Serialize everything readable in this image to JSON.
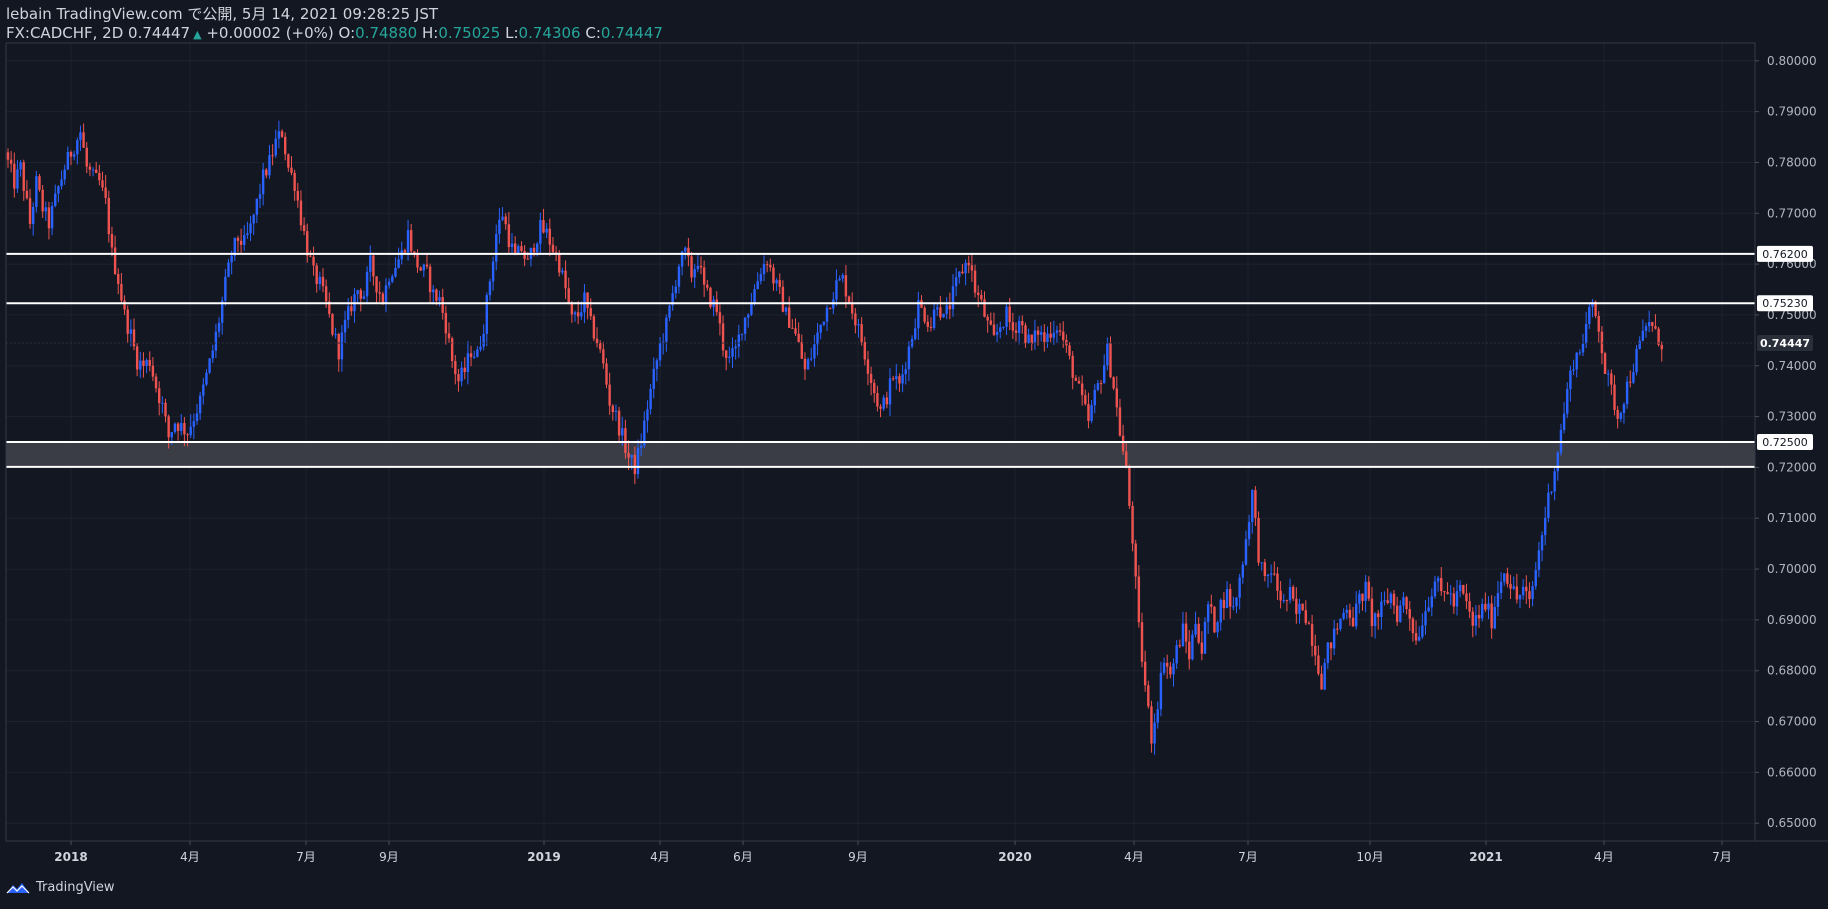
{
  "header": {
    "publish_line": "lebain TradingView.com で公開, 5月 14, 2021 09:28:25 JST",
    "symbol": "FX:CADCHF, 2D",
    "last": "0.74447",
    "change_arrow": "▲",
    "change": "+0.00002 (+0%)",
    "o_label": "O:",
    "o_value": "0.74880",
    "h_label": "H:",
    "h_value": "0.75025",
    "l_label": "L:",
    "l_value": "0.74306",
    "c_label": "C:",
    "c_value": "0.74447"
  },
  "footer": {
    "brand": "TradingView",
    "logo_icon": "tradingview-logo-icon"
  },
  "colors": {
    "background": "#131722",
    "up": "#2962ff",
    "down": "#ef5350",
    "levels": "#ffffff",
    "zone": "#3a3d46",
    "grid": "#1e222d",
    "teal": "#26a69a"
  },
  "chart_data": {
    "type": "candlestick",
    "symbol": "FX:CADCHF",
    "interval": "2D",
    "ylim": [
      0.6465,
      0.8035
    ],
    "y_ticks": [
      "0.80000",
      "0.79000",
      "0.78000",
      "0.77000",
      "0.76000",
      "0.75000",
      "0.74000",
      "0.73000",
      "0.72000",
      "0.71000",
      "0.70000",
      "0.69000",
      "0.68000",
      "0.67000",
      "0.66000",
      "0.65000"
    ],
    "x_ticks": [
      "2018",
      "4月",
      "7月",
      "9月",
      "2019",
      "4月",
      "6月",
      "9月",
      "2020",
      "4月",
      "7月",
      "10月",
      "2021",
      "4月",
      "7月"
    ],
    "horizontal_levels": [
      {
        "value": 0.762,
        "label": "0.76200"
      },
      {
        "value": 0.7523,
        "label": "0.75230"
      },
      {
        "value": 0.725,
        "label": "0.72500"
      },
      {
        "value": 0.7201,
        "label": ""
      }
    ],
    "zone": {
      "from": 0.7201,
      "to": 0.725
    },
    "last_price": {
      "value": 0.74447,
      "label": "0.74447"
    },
    "path": [
      [
        0,
        0.782
      ],
      [
        3,
        0.776
      ],
      [
        5,
        0.779
      ],
      [
        8,
        0.768
      ],
      [
        10,
        0.776
      ],
      [
        12,
        0.771
      ],
      [
        14,
        0.768
      ],
      [
        17,
        0.775
      ],
      [
        19,
        0.779
      ],
      [
        21,
        0.782
      ],
      [
        24,
        0.786
      ],
      [
        26,
        0.779
      ],
      [
        28,
        0.777
      ],
      [
        30,
        0.776
      ],
      [
        32,
        0.772
      ],
      [
        34,
        0.762
      ],
      [
        36,
        0.757
      ],
      [
        38,
        0.75
      ],
      [
        40,
        0.746
      ],
      [
        42,
        0.741
      ],
      [
        44,
        0.74
      ],
      [
        46,
        0.741
      ],
      [
        48,
        0.736
      ],
      [
        50,
        0.732
      ],
      [
        52,
        0.726
      ],
      [
        54,
        0.729
      ],
      [
        56,
        0.728
      ],
      [
        58,
        0.727
      ],
      [
        60,
        0.73
      ],
      [
        62,
        0.733
      ],
      [
        64,
        0.738
      ],
      [
        66,
        0.743
      ],
      [
        68,
        0.749
      ],
      [
        70,
        0.756
      ],
      [
        72,
        0.762
      ],
      [
        74,
        0.765
      ],
      [
        76,
        0.764
      ],
      [
        78,
        0.767
      ],
      [
        80,
        0.772
      ],
      [
        82,
        0.777
      ],
      [
        84,
        0.78
      ],
      [
        86,
        0.784
      ],
      [
        88,
        0.786
      ],
      [
        90,
        0.779
      ],
      [
        92,
        0.776
      ],
      [
        94,
        0.769
      ],
      [
        96,
        0.763
      ],
      [
        98,
        0.758
      ],
      [
        100,
        0.756
      ],
      [
        102,
        0.752
      ],
      [
        104,
        0.747
      ],
      [
        106,
        0.743
      ],
      [
        108,
        0.748
      ],
      [
        110,
        0.752
      ],
      [
        112,
        0.755
      ],
      [
        114,
        0.754
      ],
      [
        116,
        0.76
      ],
      [
        118,
        0.756
      ],
      [
        120,
        0.753
      ],
      [
        122,
        0.758
      ],
      [
        124,
        0.76
      ],
      [
        126,
        0.762
      ],
      [
        128,
        0.766
      ],
      [
        130,
        0.761
      ],
      [
        132,
        0.759
      ],
      [
        134,
        0.758
      ],
      [
        136,
        0.754
      ],
      [
        138,
        0.753
      ],
      [
        140,
        0.748
      ],
      [
        142,
        0.741
      ],
      [
        144,
        0.737
      ],
      [
        146,
        0.739
      ],
      [
        148,
        0.743
      ],
      [
        150,
        0.742
      ],
      [
        152,
        0.748
      ],
      [
        154,
        0.757
      ],
      [
        156,
        0.766
      ],
      [
        158,
        0.77
      ],
      [
        160,
        0.765
      ],
      [
        162,
        0.761
      ],
      [
        164,
        0.763
      ],
      [
        166,
        0.76
      ],
      [
        168,
        0.764
      ],
      [
        170,
        0.767
      ],
      [
        172,
        0.766
      ],
      [
        174,
        0.763
      ],
      [
        176,
        0.76
      ],
      [
        178,
        0.755
      ],
      [
        180,
        0.749
      ],
      [
        182,
        0.75
      ],
      [
        184,
        0.753
      ],
      [
        186,
        0.748
      ],
      [
        188,
        0.745
      ],
      [
        190,
        0.74
      ],
      [
        192,
        0.733
      ],
      [
        194,
        0.73
      ],
      [
        196,
        0.726
      ],
      [
        198,
        0.722
      ],
      [
        200,
        0.72
      ],
      [
        202,
        0.725
      ],
      [
        204,
        0.732
      ],
      [
        206,
        0.738
      ],
      [
        208,
        0.744
      ],
      [
        210,
        0.748
      ],
      [
        212,
        0.754
      ],
      [
        214,
        0.76
      ],
      [
        216,
        0.762
      ],
      [
        218,
        0.758
      ],
      [
        220,
        0.761
      ],
      [
        222,
        0.755
      ],
      [
        224,
        0.753
      ],
      [
        226,
        0.751
      ],
      [
        228,
        0.744
      ],
      [
        230,
        0.741
      ],
      [
        232,
        0.743
      ],
      [
        234,
        0.748
      ],
      [
        236,
        0.751
      ],
      [
        238,
        0.755
      ],
      [
        240,
        0.759
      ],
      [
        242,
        0.761
      ],
      [
        244,
        0.757
      ],
      [
        246,
        0.754
      ],
      [
        248,
        0.75
      ],
      [
        250,
        0.748
      ],
      [
        252,
        0.744
      ],
      [
        254,
        0.739
      ],
      [
        256,
        0.742
      ],
      [
        258,
        0.746
      ],
      [
        260,
        0.75
      ],
      [
        262,
        0.753
      ],
      [
        264,
        0.756
      ],
      [
        266,
        0.757
      ],
      [
        268,
        0.753
      ],
      [
        270,
        0.749
      ],
      [
        272,
        0.745
      ],
      [
        274,
        0.74
      ],
      [
        276,
        0.735
      ],
      [
        278,
        0.731
      ],
      [
        280,
        0.734
      ],
      [
        282,
        0.738
      ],
      [
        284,
        0.736
      ],
      [
        286,
        0.741
      ],
      [
        288,
        0.746
      ],
      [
        290,
        0.752
      ],
      [
        292,
        0.75
      ],
      [
        294,
        0.748
      ],
      [
        296,
        0.753
      ],
      [
        298,
        0.749
      ],
      [
        300,
        0.752
      ],
      [
        302,
        0.756
      ],
      [
        304,
        0.759
      ],
      [
        306,
        0.761
      ],
      [
        308,
        0.755
      ],
      [
        310,
        0.752
      ],
      [
        312,
        0.748
      ],
      [
        314,
        0.745
      ],
      [
        316,
        0.748
      ],
      [
        318,
        0.75
      ],
      [
        320,
        0.747
      ],
      [
        322,
        0.749
      ],
      [
        324,
        0.746
      ],
      [
        326,
        0.744
      ],
      [
        328,
        0.747
      ],
      [
        330,
        0.745
      ],
      [
        332,
        0.747
      ],
      [
        334,
        0.748
      ],
      [
        336,
        0.745
      ],
      [
        338,
        0.741
      ],
      [
        340,
        0.737
      ],
      [
        342,
        0.733
      ],
      [
        344,
        0.729
      ],
      [
        346,
        0.734
      ],
      [
        348,
        0.738
      ],
      [
        350,
        0.743
      ],
      [
        352,
        0.736
      ],
      [
        354,
        0.727
      ],
      [
        356,
        0.719
      ],
      [
        358,
        0.706
      ],
      [
        360,
        0.688
      ],
      [
        362,
        0.677
      ],
      [
        364,
        0.667
      ],
      [
        366,
        0.674
      ],
      [
        368,
        0.683
      ],
      [
        370,
        0.679
      ],
      [
        372,
        0.684
      ],
      [
        374,
        0.688
      ],
      [
        376,
        0.683
      ],
      [
        378,
        0.69
      ],
      [
        380,
        0.684
      ],
      [
        382,
        0.693
      ],
      [
        384,
        0.689
      ],
      [
        386,
        0.693
      ],
      [
        388,
        0.695
      ],
      [
        390,
        0.692
      ],
      [
        392,
        0.698
      ],
      [
        394,
        0.706
      ],
      [
        396,
        0.715
      ],
      [
        398,
        0.703
      ],
      [
        400,
        0.697
      ],
      [
        402,
        0.7
      ],
      [
        404,
        0.696
      ],
      [
        406,
        0.693
      ],
      [
        408,
        0.695
      ],
      [
        410,
        0.691
      ],
      [
        412,
        0.693
      ],
      [
        414,
        0.689
      ],
      [
        416,
        0.684
      ],
      [
        418,
        0.678
      ],
      [
        420,
        0.684
      ],
      [
        422,
        0.687
      ],
      [
        424,
        0.69
      ],
      [
        426,
        0.693
      ],
      [
        428,
        0.69
      ],
      [
        430,
        0.694
      ],
      [
        432,
        0.696
      ],
      [
        434,
        0.69
      ],
      [
        436,
        0.691
      ],
      [
        438,
        0.693
      ],
      [
        440,
        0.695
      ],
      [
        442,
        0.691
      ],
      [
        444,
        0.694
      ],
      [
        446,
        0.691
      ],
      [
        448,
        0.686
      ],
      [
        450,
        0.69
      ],
      [
        452,
        0.694
      ],
      [
        454,
        0.698
      ],
      [
        456,
        0.695
      ],
      [
        458,
        0.696
      ],
      [
        460,
        0.693
      ],
      [
        462,
        0.696
      ],
      [
        464,
        0.693
      ],
      [
        466,
        0.689
      ],
      [
        468,
        0.691
      ],
      [
        470,
        0.693
      ],
      [
        472,
        0.69
      ],
      [
        474,
        0.696
      ],
      [
        476,
        0.7
      ],
      [
        478,
        0.697
      ],
      [
        480,
        0.694
      ],
      [
        482,
        0.696
      ],
      [
        484,
        0.693
      ],
      [
        486,
        0.7
      ],
      [
        488,
        0.707
      ],
      [
        490,
        0.714
      ],
      [
        492,
        0.72
      ],
      [
        494,
        0.727
      ],
      [
        496,
        0.735
      ],
      [
        498,
        0.741
      ],
      [
        500,
        0.743
      ],
      [
        502,
        0.748
      ],
      [
        504,
        0.752
      ],
      [
        506,
        0.748
      ],
      [
        508,
        0.739
      ],
      [
        510,
        0.735
      ],
      [
        512,
        0.73
      ],
      [
        514,
        0.734
      ],
      [
        516,
        0.738
      ],
      [
        518,
        0.742
      ],
      [
        520,
        0.746
      ],
      [
        522,
        0.749
      ],
      [
        524,
        0.746
      ],
      [
        526,
        0.7445
      ]
    ]
  }
}
